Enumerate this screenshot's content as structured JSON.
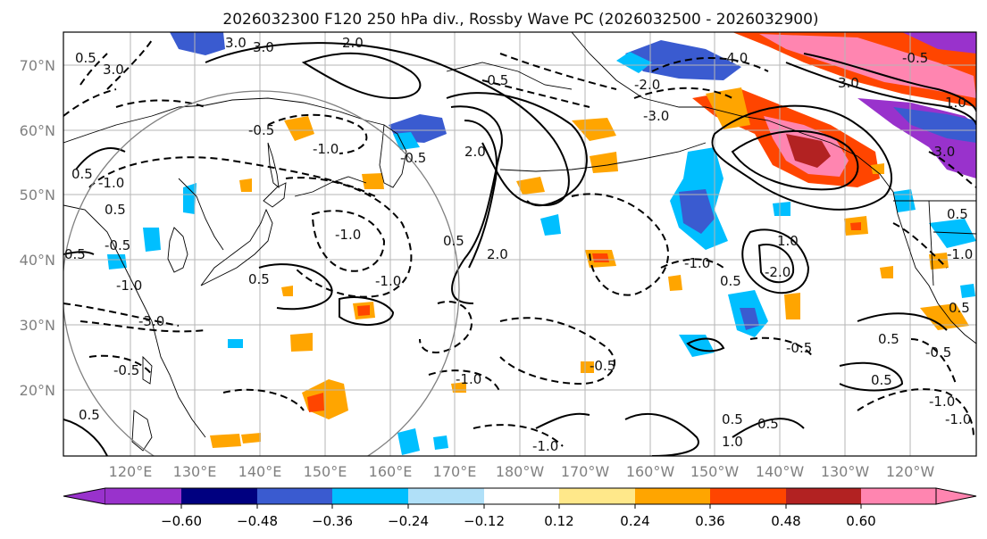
{
  "title": "2026032300 F120 250 hPa div., Rossby Wave PC (2026032500 - 2026032900)",
  "map": {
    "lat_labels": [
      "70°N",
      "60°N",
      "50°N",
      "40°N",
      "30°N",
      "20°N"
    ],
    "lon_labels": [
      "120°E",
      "130°E",
      "140°E",
      "150°E",
      "160°E",
      "170°E",
      "180°W",
      "170°W",
      "160°W",
      "150°W",
      "140°W",
      "130°W",
      "120°W"
    ],
    "label_color": "#808080"
  },
  "contour_labels": {
    "c1": "3.0",
    "c2": "2.0",
    "c3": "3.0",
    "c4": "3.0",
    "c5": "0.5",
    "c6": "-0.5",
    "c7": "-1.0",
    "c8": "-0.5",
    "c9": "0.5",
    "c10": "-1.0",
    "c11": "0.5",
    "c12": "0.5",
    "c13": "-0.5",
    "c14": "-1.0",
    "c15": "0.5",
    "c16": "-3.0",
    "c17": "-0.5",
    "c18": "0.5",
    "c19": "2.0",
    "c20": "-0.5",
    "c21": "2.0",
    "c22": "0.5",
    "c23": "-1.0",
    "c24": "-1.0",
    "c25": "-4.0",
    "c26": "3.0",
    "c27": "-2.0",
    "c28": "-3.0",
    "c29": "-3.0",
    "c30": "0.5",
    "c31": "-1.0",
    "c32": "0.5",
    "c33": "1.0",
    "c34": "-2.0",
    "c35": "-0.5",
    "c36": "0.5",
    "c37": "-0.5",
    "c38": "0.5",
    "c39": "0.5",
    "c40": "1.0",
    "c41": "-1.0",
    "c42": "-1.0",
    "c43": "-0.5",
    "c44": "-1.0",
    "c45": "0.5",
    "c46": "-1.0",
    "c47": "-1.0",
    "c48": "0.5",
    "c49": "1.0",
    "c50": "-0.5"
  },
  "colorbar": {
    "ticks": [
      "−0.60",
      "−0.48",
      "−0.36",
      "−0.24",
      "−0.12",
      "0.12",
      "0.24",
      "0.36",
      "0.48",
      "0.60"
    ],
    "colors": [
      "#9932cc",
      "#000080",
      "#3a5bd0",
      "#00bfff",
      "#b0e0f8",
      "#ffffff",
      "#ffe88a",
      "#ffa500",
      "#ff4500",
      "#b22222",
      "#ff85b0",
      "#ff85b0"
    ]
  }
}
